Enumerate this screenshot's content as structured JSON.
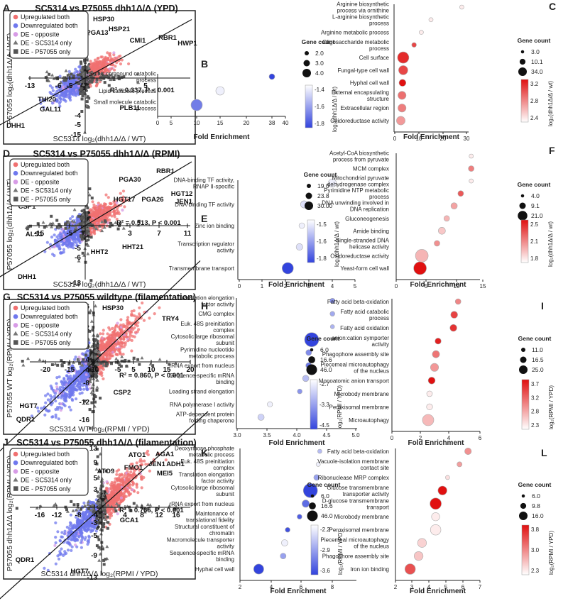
{
  "colors": {
    "up": "#f07070",
    "down": "#6f78ee",
    "opp": "#d79be6",
    "grey": "#555555",
    "blue": "#3344dd",
    "red": "#e01010"
  },
  "scatter_panels": [
    {
      "letter": "A",
      "title": "SC5314 vs P75055 dhh1Δ/Δ (YPD)",
      "xlabel": "SC5314 log₂(dhh1Δ/Δ / WT)",
      "ylabel": "P57055 log₂(dhh1Δ/Δ / WT)",
      "xticks": [
        "-13",
        "-6",
        "-5",
        "5"
      ],
      "yticks": [
        "10",
        "5",
        "-4",
        "-5",
        "-15"
      ],
      "stat": "R² = 0.337, P < 0.001",
      "legend": [
        "Upregulated both",
        "Downregulated both",
        "DE - opposite",
        "DE - SC5314 only",
        "DE - P57055 only"
      ],
      "genes": [
        {
          "name": "HSP30"
        },
        {
          "name": "HSP21"
        },
        {
          "name": "PGA13"
        },
        {
          "name": "CMI1"
        },
        {
          "name": "RBR1"
        },
        {
          "name": "HWP1"
        },
        {
          "name": "HWP2"
        },
        {
          "name": "THI20"
        },
        {
          "name": "GAL11"
        },
        {
          "name": "PLB11"
        },
        {
          "name": "DHH1"
        }
      ]
    },
    {
      "letter": "D",
      "title": "SC5314 vs P75055 dhh1Δ/Δ (RPMI)",
      "xlabel": "SC5314 log₂(dhh1Δ/Δ / WT)",
      "ylabel": "P57055 log₂(dhh1Δ/Δ / WT)",
      "xticks": [
        "-15",
        "-5",
        "3",
        "7",
        "11"
      ],
      "yticks": [
        "9",
        "5",
        "-5",
        "-6",
        "-13"
      ],
      "stat": "R² = 0.513, P < 0.001",
      "legend": [
        "Upregulated both",
        "Downregulated both",
        "DE - opposite",
        "DE - SC5314 only",
        "DE - P57055 only"
      ],
      "genes": [
        {
          "name": "RBR1"
        },
        {
          "name": "PGA30"
        },
        {
          "name": "HGT12"
        },
        {
          "name": "HGT17"
        },
        {
          "name": "PGA26"
        },
        {
          "name": "JEN1"
        },
        {
          "name": "CSP1"
        },
        {
          "name": "ALS1"
        },
        {
          "name": "HHT21"
        },
        {
          "name": "HHT2"
        },
        {
          "name": "DHH1"
        }
      ]
    },
    {
      "letter": "G",
      "title": "SC5314 vs P75055 wildtype (filamentation)",
      "xlabel": "SC5314 WT log₂(RPMI / YPD)",
      "ylabel": "P57055 WT log₂(RPMI / YPD)",
      "xticks": [
        "-20",
        "-15",
        "-10",
        "-5",
        "5",
        "10",
        "15",
        "20"
      ],
      "yticks": [
        "16",
        "12",
        "8",
        "4",
        "-4",
        "-8",
        "-12",
        "-16"
      ],
      "stat": "R² = 0.860, P < 0.001",
      "legend": [
        "Upregulated both",
        "Downregulated both",
        "DE - opposite",
        "DE - SC5314 only",
        "DE - P57055 only"
      ],
      "genes": [
        {
          "name": "HSP30"
        },
        {
          "name": "TRY4"
        },
        {
          "name": "CSP2"
        },
        {
          "name": "HGT7"
        },
        {
          "name": "QDR1"
        }
      ]
    },
    {
      "letter": "J",
      "title": "SC5314 vs P75055 dhh1Δ/Δ (filamentation)",
      "xlabel": "SC5314 dhh1Δ/Δ log₂(RPMI / YPD)",
      "ylabel": "P57055 dhh1Δ/Δ log₂(RPMI / YPD)",
      "xticks": [
        "-16",
        "-12",
        "-8",
        "-4",
        "4",
        "8",
        "12",
        "16"
      ],
      "yticks": [
        "13",
        "9",
        "5",
        "3",
        "-3",
        "-5",
        "-9",
        "-13"
      ],
      "stat": "R² = 0.765, P < 0.001",
      "legend": [
        "Upregulated both",
        "Downregulated both",
        "DE - opposite",
        "DE - SC5314 only",
        "DE - P57055 only"
      ],
      "genes": [
        {
          "name": "ATO1"
        },
        {
          "name": "AGA1"
        },
        {
          "name": "ADH1"
        },
        {
          "name": "ATO9"
        },
        {
          "name": "FMO1"
        },
        {
          "name": "JEN1"
        },
        {
          "name": "MEI5"
        },
        {
          "name": "GCA1"
        },
        {
          "name": "QDR1"
        },
        {
          "name": "HGT7"
        }
      ]
    }
  ],
  "chart_data": [
    {
      "panel": "B",
      "type": "scatter",
      "xlabel": "Fold Enrichment",
      "xticks": [
        "0",
        "5",
        "10",
        "15",
        "20",
        "38",
        "40"
      ],
      "terms": [
        "Sulfur compound catabolic process",
        "Lipid catabolic process",
        "Small molecule catabolic process"
      ],
      "fold": [
        38,
        15,
        10
      ],
      "count": [
        2,
        3,
        4
      ],
      "color": [
        -1.8,
        -1.2,
        -1.6
      ],
      "size_title": "Gene count",
      "size_labels": [
        "2.0",
        "3.0",
        "4.0"
      ],
      "cbar_ticks": [
        "-1.4",
        "-1.6",
        "-1.8"
      ],
      "cbar_label": "log₂(dhh1Δ/Δ / wt)"
    },
    {
      "panel": "C",
      "type": "scatter",
      "xlabel": "Fold Enrichment",
      "xticks": [
        "0",
        "10",
        "20",
        "30"
      ],
      "terms": [
        "Arginine biosynthetic process via ornithine",
        "L-arginine biosynthetic process",
        "Arginine metabolic process",
        "Oligosaccharide metabolic process",
        "Cell surface",
        "Fungal-type cell wall",
        "Hyphal cell wall",
        "External encapsulating structure",
        "Extracellular region",
        "Oxidoreductase activity"
      ],
      "fold": [
        28,
        15,
        11,
        8,
        3.5,
        3.5,
        3.2,
        3,
        3,
        2.5
      ],
      "count": [
        3,
        3,
        3,
        5,
        34,
        25,
        15,
        20,
        20,
        22
      ],
      "color": [
        2.2,
        2.2,
        2.2,
        3.4,
        3.6,
        3.4,
        3.8,
        3.1,
        3.0,
        2.8
      ],
      "size_title": "Gene count",
      "size_labels": [
        "3.0",
        "10.1",
        "34.0"
      ],
      "cbar_ticks": [
        "3.2",
        "2.8",
        "2.4"
      ],
      "cbar_label": "log₂(dhh1Δ/Δ / wt)"
    },
    {
      "panel": "E",
      "type": "scatter",
      "xlabel": "Fold Enrichment",
      "xticks": [
        "0",
        "1",
        "2",
        "3",
        "4",
        "5"
      ],
      "terms": [
        "DNA-binding TF activity, RNAP II-specific",
        "DNA-binding TF activity",
        "Zinc ion binding",
        "Transcription regulator activity",
        "Transmembrane transport"
      ],
      "fold": [
        4,
        2.8,
        2.7,
        2.6,
        2.1
      ],
      "count": [
        24,
        22,
        19,
        21,
        30
      ],
      "color": [
        -1.35,
        -1.4,
        -1.35,
        -1.4,
        -1.9
      ],
      "size_title": "Gene count",
      "size_labels": [
        "19.0",
        "23.8",
        "30.00"
      ],
      "cbar_ticks": [
        "-1.5",
        "-1.6",
        "-1.8"
      ],
      "cbar_label": "log₂(dhh1Δ/Δ / wt)"
    },
    {
      "panel": "F",
      "type": "scatter",
      "xlabel": "Fold Enrichment",
      "xticks": [
        "0",
        "5",
        "10",
        "15"
      ],
      "terms": [
        "Acetyl-CoA biosynthetic process from pyruvate",
        "MCM complex",
        "Mitochondrial pyruvate dehydrogenase complex",
        "Pyrimidine NTP metabolic process",
        "DNA unwinding involved in DNA replication",
        "Gluconeogenesis",
        "Amide binding",
        "Single-stranded DNA helicase activity",
        "Oxidoreductase activity",
        "Yeast-form cell wall"
      ],
      "fold": [
        12.8,
        12.8,
        12.8,
        10.8,
        9.6,
        8.4,
        7.6,
        6.8,
        4.3,
        4
      ],
      "count": [
        4,
        6,
        4,
        6,
        7,
        6,
        8,
        6,
        16,
        16
      ],
      "color": [
        1.6,
        2.2,
        1.6,
        2.4,
        2.0,
        1.9,
        1.8,
        2.1,
        1.9,
        2.8
      ],
      "size_title": "Gene count",
      "size_labels": [
        "4.0",
        "9.1",
        "21.0"
      ],
      "cbar_ticks": [
        "2.5",
        "2.1",
        "1.8"
      ],
      "cbar_label": "log₂(dhh1Δ/Δ / wt)"
    },
    {
      "panel": "H",
      "type": "scatter",
      "xlabel": "Fold Enrichment",
      "xticks": [
        "3.0",
        "3.5",
        "4.0",
        "4.5",
        "5.0"
      ],
      "terms": [
        "Translation elongation factor activity",
        "CMG complex",
        "Euk. 48S preinitiation complex",
        "Cytosolic large ribosomal subunit",
        "Pyrimidine nucleotide metabolic process",
        "rRNA export from nucleus",
        "Sequence-specific mRNA binding",
        "Leading strand elongation",
        "RNA polymerase I activity",
        "ATP-dependent protein folding chaperone"
      ],
      "fold": [
        4.6,
        4.6,
        4.6,
        4.25,
        4.2,
        4.2,
        4.15,
        4.05,
        3.55,
        3.4
      ],
      "count": [
        12,
        10,
        8,
        46,
        14,
        14,
        16,
        10,
        12,
        16
      ],
      "color": [
        -3.5,
        -3.3,
        -3.2,
        -4.3,
        -3.6,
        -3.8,
        -3.1,
        -3.5,
        -2.6,
        -2.9
      ],
      "size_title": "Gene count",
      "size_labels": [
        "6.0",
        "16.6",
        "46.0"
      ],
      "cbar_ticks": [
        "-2.7",
        "-3.3",
        "-4.5"
      ],
      "cbar_label": "log₂(RPMI / YPD)"
    },
    {
      "panel": "I",
      "type": "scatter",
      "xlabel": "Fold Enrichment",
      "xticks": [
        "0",
        "2",
        "4",
        "6"
      ],
      "terms": [
        "Fatty acid beta-oxidation",
        "Fatty acid catabolic process",
        "Fatty acid oxidation",
        "anion:cation symporter activity",
        "Phagophore assembly site",
        "Piecemeal microautophagy of the nucleus",
        "Monoatomic anion transport",
        "Microbody membrane",
        "Peroxisomal membrane",
        "Microautophagy"
      ],
      "fold": [
        4.6,
        4.35,
        4.3,
        3.25,
        3.1,
        3.0,
        2.8,
        2.65,
        2.65,
        2.55
      ],
      "count": [
        11,
        14,
        14,
        12,
        15,
        17,
        14,
        11,
        12,
        25
      ],
      "color": [
        2.9,
        3.3,
        3.4,
        3.5,
        3.0,
        2.8,
        3.6,
        2.3,
        2.3,
        2.6
      ],
      "size_title": "Gene count",
      "size_labels": [
        "11.0",
        "16.5",
        "25.0"
      ],
      "cbar_ticks": [
        "3.7",
        "3.2",
        "2.8",
        "2.3"
      ],
      "cbar_label": "log₂(RPMI / YPD)"
    },
    {
      "panel": "K",
      "type": "scatter",
      "xlabel": "Fold Enrichment",
      "xticks": [
        "2",
        "4",
        "6",
        "8"
      ],
      "terms": [
        "Deoxyribose phosphate metabolic process",
        "Euk. 48S preinitiation complex",
        "Translation elongation factor activity",
        "Cytosolic large ribosomal subunit",
        "rRNA export from nucleus",
        "Maintenance of translational fidelity",
        "Structural constituent of chromatin",
        "Macromolecule transporter activity",
        "Sequence-specific mRNA binding",
        "Hyphal cell wall"
      ],
      "fold": [
        7.2,
        7.1,
        7.0,
        6.6,
        6.3,
        5.9,
        5.1,
        4.9,
        4.8,
        3.2
      ],
      "count": [
        8,
        8,
        14,
        46,
        20,
        10,
        10,
        16,
        14,
        30
      ],
      "color": [
        -2.8,
        -2.4,
        -3.0,
        -3.7,
        -3.4,
        -3.5,
        -3.6,
        -2.4,
        -3.0,
        -3.7
      ],
      "size_title": "Gene count",
      "size_labels": [
        "6.0",
        "16.6",
        "46.0"
      ],
      "cbar_ticks": [
        "-2.2",
        "-2.9",
        "-3.6"
      ],
      "cbar_label": "log₂(RPMI / YPD)"
    },
    {
      "panel": "L",
      "type": "scatter",
      "xlabel": "Fold Enrichment",
      "xticks": [
        "2",
        "3",
        "4",
        "5",
        "6",
        "7"
      ],
      "terms": [
        "Fatty acid beta-oxidation",
        "Vacuole-isolation membrane contact site",
        "Ribonuclease MRP complex",
        "Glucose transmembrane transporter activity",
        "D-glucose transmembrane transport",
        "Microbody membrane",
        "Peroxisomal membrane",
        "Piecemeal microautophagy of the nucleus",
        "Phagophore assembly site",
        "Iron ion binding"
      ],
      "fold": [
        6.3,
        5.8,
        5.1,
        4.8,
        4.4,
        4.4,
        4.4,
        3.6,
        3.4,
        2.9
      ],
      "count": [
        9,
        7,
        6,
        12,
        15,
        11,
        14,
        12,
        12,
        14
      ],
      "color": [
        3.0,
        2.9,
        2.4,
        4.0,
        4.0,
        2.3,
        2.3,
        2.5,
        2.6,
        3.5
      ],
      "size_title": "Gene count",
      "size_labels": [
        "6.0",
        "9.8",
        "16.0"
      ],
      "cbar_ticks": [
        "3.8",
        "3.0",
        "2.3"
      ],
      "cbar_label": "log₂(RPMI / YPD)"
    }
  ]
}
